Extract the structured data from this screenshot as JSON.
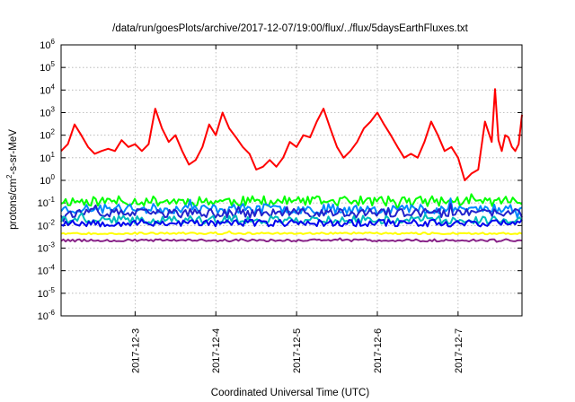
{
  "chart_data": {
    "type": "line",
    "title": "/data/run/goesPlots/archive/2017-12-07/19:00/flux/../flux/5daysEarthFluxes.txt",
    "xlabel": "Coordinated Universal Time (UTC)",
    "ylabel_parts": {
      "pre": "protons/cm",
      "sup": "2",
      "post": "-s-sr-MeV"
    },
    "x_scale": "time",
    "xlim": [
      "2017-12-02T02:00",
      "2017-12-07T19:00"
    ],
    "x_ticks": [
      "2017-12-3",
      "2017-12-4",
      "2017-12-5",
      "2017-12-6",
      "2017-12-7"
    ],
    "y_scale": "log",
    "ylim": [
      1e-06,
      1000000.0
    ],
    "y_ticks": [
      {
        "base": "10",
        "exp": "-6"
      },
      {
        "base": "10",
        "exp": "-5"
      },
      {
        "base": "10",
        "exp": "-4"
      },
      {
        "base": "10",
        "exp": "-3"
      },
      {
        "base": "10",
        "exp": "-2"
      },
      {
        "base": "10",
        "exp": "-1"
      },
      {
        "base": "10",
        "exp": "0"
      },
      {
        "base": "10",
        "exp": "1"
      },
      {
        "base": "10",
        "exp": "2"
      },
      {
        "base": "10",
        "exp": "3"
      },
      {
        "base": "10",
        "exp": "4"
      },
      {
        "base": "10",
        "exp": "5"
      },
      {
        "base": "10",
        "exp": "6"
      }
    ],
    "grid": true,
    "series": [
      {
        "color": "#ff0000",
        "points": [
          [
            "2017-12-02T02:00",
            20
          ],
          [
            "2017-12-02T04:00",
            40
          ],
          [
            "2017-12-02T06:00",
            300
          ],
          [
            "2017-12-02T08:00",
            100
          ],
          [
            "2017-12-02T10:00",
            30
          ],
          [
            "2017-12-02T12:00",
            15
          ],
          [
            "2017-12-02T14:00",
            20
          ],
          [
            "2017-12-02T16:00",
            25
          ],
          [
            "2017-12-02T18:00",
            20
          ],
          [
            "2017-12-02T20:00",
            60
          ],
          [
            "2017-12-02T22:00",
            30
          ],
          [
            "2017-12-03T00:00",
            40
          ],
          [
            "2017-12-03T02:00",
            20
          ],
          [
            "2017-12-03T04:00",
            40
          ],
          [
            "2017-12-03T06:00",
            1500
          ],
          [
            "2017-12-03T08:00",
            200
          ],
          [
            "2017-12-03T10:00",
            50
          ],
          [
            "2017-12-03T12:00",
            100
          ],
          [
            "2017-12-03T14:00",
            20
          ],
          [
            "2017-12-03T16:00",
            5
          ],
          [
            "2017-12-03T18:00",
            8
          ],
          [
            "2017-12-03T20:00",
            30
          ],
          [
            "2017-12-03T22:00",
            300
          ],
          [
            "2017-12-04T00:00",
            100
          ],
          [
            "2017-12-04T02:00",
            1000
          ],
          [
            "2017-12-04T04:00",
            200
          ],
          [
            "2017-12-04T06:00",
            80
          ],
          [
            "2017-12-04T08:00",
            30
          ],
          [
            "2017-12-04T10:00",
            15
          ],
          [
            "2017-12-04T12:00",
            3
          ],
          [
            "2017-12-04T14:00",
            4
          ],
          [
            "2017-12-04T16:00",
            8
          ],
          [
            "2017-12-04T18:00",
            4
          ],
          [
            "2017-12-04T20:00",
            10
          ],
          [
            "2017-12-04T22:00",
            50
          ],
          [
            "2017-12-05T00:00",
            30
          ],
          [
            "2017-12-05T02:00",
            100
          ],
          [
            "2017-12-05T04:00",
            80
          ],
          [
            "2017-12-05T06:00",
            400
          ],
          [
            "2017-12-05T08:00",
            1500
          ],
          [
            "2017-12-05T10:00",
            200
          ],
          [
            "2017-12-05T12:00",
            30
          ],
          [
            "2017-12-05T14:00",
            10
          ],
          [
            "2017-12-05T16:00",
            20
          ],
          [
            "2017-12-05T18:00",
            50
          ],
          [
            "2017-12-05T20:00",
            200
          ],
          [
            "2017-12-05T22:00",
            400
          ],
          [
            "2017-12-06T00:00",
            1000
          ],
          [
            "2017-12-06T02:00",
            300
          ],
          [
            "2017-12-06T04:00",
            100
          ],
          [
            "2017-12-06T06:00",
            30
          ],
          [
            "2017-12-06T08:00",
            10
          ],
          [
            "2017-12-06T10:00",
            15
          ],
          [
            "2017-12-06T12:00",
            10
          ],
          [
            "2017-12-06T14:00",
            50
          ],
          [
            "2017-12-06T16:00",
            400
          ],
          [
            "2017-12-06T18:00",
            100
          ],
          [
            "2017-12-06T20:00",
            20
          ],
          [
            "2017-12-06T22:00",
            30
          ],
          [
            "2017-12-07T00:00",
            10
          ],
          [
            "2017-12-07T02:00",
            1
          ],
          [
            "2017-12-07T04:00",
            2
          ],
          [
            "2017-12-07T06:00",
            3
          ],
          [
            "2017-12-07T08:00",
            400
          ],
          [
            "2017-12-07T10:00",
            50
          ],
          [
            "2017-12-07T11:00",
            11000
          ],
          [
            "2017-12-07T12:00",
            60
          ],
          [
            "2017-12-07T13:00",
            20
          ],
          [
            "2017-12-07T14:00",
            100
          ],
          [
            "2017-12-07T15:00",
            80
          ],
          [
            "2017-12-07T16:00",
            30
          ],
          [
            "2017-12-07T17:00",
            20
          ],
          [
            "2017-12-07T18:00",
            40
          ],
          [
            "2017-12-07T19:00",
            800
          ]
        ]
      },
      {
        "color": "#00ff00",
        "level": 0.12,
        "jitter": 0.22,
        "seed": 11
      },
      {
        "color": "#0088ff",
        "level": 0.055,
        "jitter": 0.22,
        "seed": 23
      },
      {
        "color": "#2222cc",
        "level": 0.035,
        "jitter": 0.2,
        "seed": 37
      },
      {
        "color": "#00bbbb",
        "level": 0.018,
        "jitter": 0.18,
        "seed": 41
      },
      {
        "color": "#0000ee",
        "level": 0.013,
        "jitter": 0.16,
        "seed": 53
      },
      {
        "color": "#ffff00",
        "level": 0.0045,
        "jitter": 0.04,
        "seed": 67
      },
      {
        "color": "#882288",
        "level": 0.0022,
        "jitter": 0.05,
        "seed": 79
      }
    ]
  }
}
